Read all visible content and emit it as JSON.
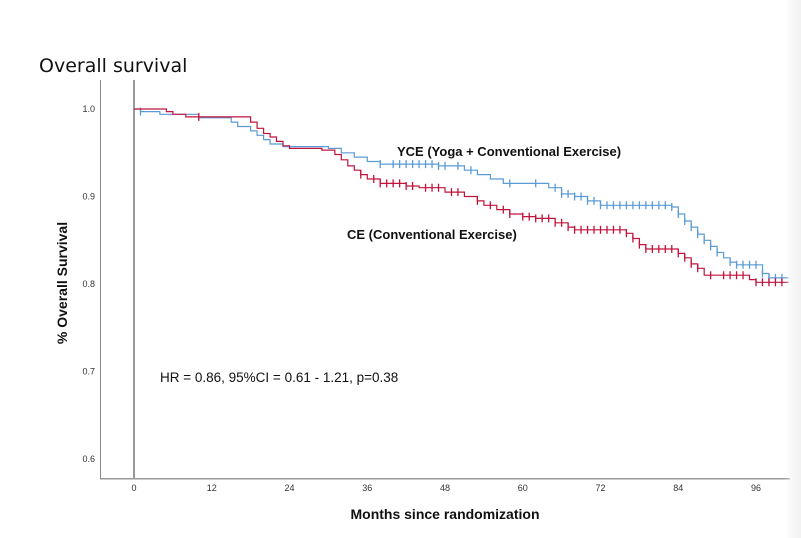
{
  "chart_data": {
    "type": "line",
    "subtype": "kaplan-meier",
    "title": "Overall survival",
    "xlabel": "Months since randomization",
    "ylabel": "% Overall Survival",
    "xlim": [
      -5,
      101
    ],
    "ylim": [
      0.58,
      1.01
    ],
    "xticks": [
      0,
      12,
      24,
      36,
      48,
      60,
      72,
      84,
      96
    ],
    "xtick_labels": [
      "0",
      "12",
      "24",
      "36",
      "48",
      "60",
      "72",
      "84",
      "96"
    ],
    "yticks": [
      0.6,
      0.7,
      0.8,
      0.9,
      1.0
    ],
    "ytick_labels": [
      "0.6",
      "0.7",
      "0.8",
      "0.9",
      "1.0"
    ],
    "grid": false,
    "annotation": "HR = 0.86, 95%CI = 0.61 - 1.21, p=0.38",
    "series": [
      {
        "name": "YCE (Yoga + Conventional Exercise)",
        "color": "#5b9bd5",
        "steps": [
          [
            0,
            1.0
          ],
          [
            1,
            0.997
          ],
          [
            4,
            0.994
          ],
          [
            10,
            0.99
          ],
          [
            15,
            0.985
          ],
          [
            16,
            0.98
          ],
          [
            18,
            0.975
          ],
          [
            19,
            0.97
          ],
          [
            20,
            0.965
          ],
          [
            21,
            0.96
          ],
          [
            23,
            0.957
          ],
          [
            30,
            0.955
          ],
          [
            32,
            0.95
          ],
          [
            34,
            0.945
          ],
          [
            36,
            0.94
          ],
          [
            38,
            0.937
          ],
          [
            47,
            0.935
          ],
          [
            51,
            0.93
          ],
          [
            53,
            0.925
          ],
          [
            55,
            0.92
          ],
          [
            57,
            0.915
          ],
          [
            64,
            0.91
          ],
          [
            66,
            0.903
          ],
          [
            68,
            0.9
          ],
          [
            70,
            0.895
          ],
          [
            72,
            0.89
          ],
          [
            83,
            0.888
          ],
          [
            84,
            0.88
          ],
          [
            85,
            0.872
          ],
          [
            86,
            0.865
          ],
          [
            87,
            0.857
          ],
          [
            88,
            0.85
          ],
          [
            89,
            0.843
          ],
          [
            90,
            0.836
          ],
          [
            91,
            0.83
          ],
          [
            92,
            0.825
          ],
          [
            93,
            0.822
          ],
          [
            97,
            0.812
          ],
          [
            98,
            0.807
          ],
          [
            101,
            0.807
          ]
        ],
        "censor_times": [
          1,
          38,
          40,
          41,
          42,
          43,
          44,
          45,
          46,
          47,
          48,
          50,
          52,
          58,
          62,
          65,
          66,
          67,
          68,
          69,
          70,
          71,
          72,
          73,
          74,
          75,
          76,
          77,
          78,
          79,
          80,
          81,
          82,
          83,
          84,
          85,
          86,
          87,
          88,
          89,
          90,
          92,
          93,
          94,
          95,
          96,
          97,
          98,
          99,
          100
        ]
      },
      {
        "name": "CE (Conventional Exercise)",
        "color": "#c0143c",
        "steps": [
          [
            0,
            1.0
          ],
          [
            5,
            0.997
          ],
          [
            6,
            0.994
          ],
          [
            8,
            0.991
          ],
          [
            18,
            0.985
          ],
          [
            19,
            0.978
          ],
          [
            20,
            0.972
          ],
          [
            21,
            0.968
          ],
          [
            22,
            0.963
          ],
          [
            23,
            0.958
          ],
          [
            24,
            0.955
          ],
          [
            29,
            0.953
          ],
          [
            31,
            0.948
          ],
          [
            32,
            0.942
          ],
          [
            33,
            0.935
          ],
          [
            34,
            0.93
          ],
          [
            35,
            0.925
          ],
          [
            36,
            0.92
          ],
          [
            38,
            0.915
          ],
          [
            42,
            0.912
          ],
          [
            44,
            0.91
          ],
          [
            48,
            0.905
          ],
          [
            51,
            0.9
          ],
          [
            53,
            0.895
          ],
          [
            54,
            0.89
          ],
          [
            56,
            0.885
          ],
          [
            58,
            0.88
          ],
          [
            60,
            0.877
          ],
          [
            62,
            0.875
          ],
          [
            65,
            0.87
          ],
          [
            67,
            0.865
          ],
          [
            68,
            0.862
          ],
          [
            76,
            0.858
          ],
          [
            77,
            0.852
          ],
          [
            78,
            0.845
          ],
          [
            79,
            0.84
          ],
          [
            84,
            0.835
          ],
          [
            85,
            0.83
          ],
          [
            86,
            0.823
          ],
          [
            87,
            0.818
          ],
          [
            88,
            0.81
          ],
          [
            95,
            0.805
          ],
          [
            96,
            0.802
          ],
          [
            101,
            0.802
          ]
        ],
        "censor_times": [
          10,
          35,
          37,
          38,
          39,
          40,
          41,
          42,
          43,
          45,
          46,
          47,
          49,
          50,
          53,
          55,
          57,
          58,
          60,
          61,
          62,
          63,
          64,
          65,
          66,
          67,
          68,
          69,
          70,
          71,
          72,
          73,
          74,
          75,
          76,
          77,
          78,
          79,
          80,
          81,
          82,
          83,
          84,
          85,
          86,
          87,
          89,
          91,
          92,
          93,
          94,
          96,
          97,
          98,
          99,
          100
        ]
      }
    ]
  }
}
